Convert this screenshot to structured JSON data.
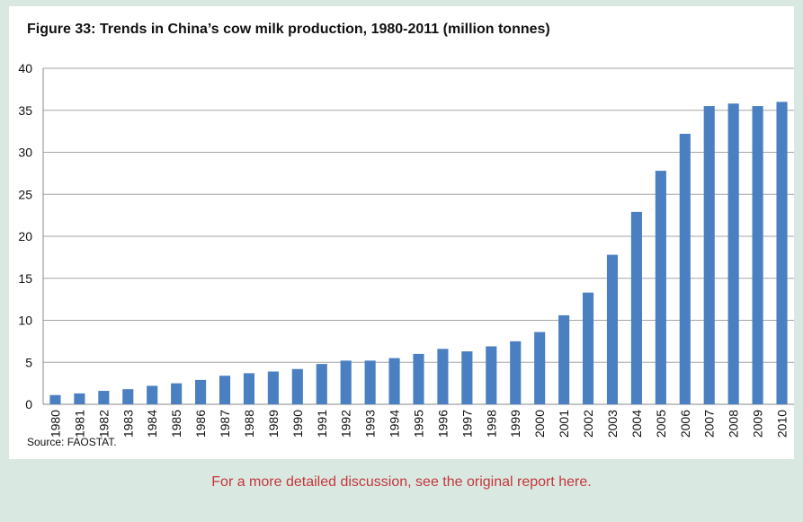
{
  "footer": {
    "link_text": "For a more detailed discussion, see the original report here."
  },
  "colors": {
    "bar": "#4a7fc1",
    "gridline": "#a6a6a6",
    "footer_background": "#d9e8e1",
    "footer_text": "#c4373d"
  },
  "chart_data": {
    "type": "bar",
    "title": "Figure 33: Trends in China’s cow milk production, 1980-2011 (million tonnes)",
    "source": "Source: FAOSTAT.",
    "xlabel": "",
    "ylabel": "",
    "ylim": [
      0,
      40
    ],
    "yticks": [
      "0",
      "5",
      "10",
      "15",
      "20",
      "25",
      "30",
      "35",
      "40"
    ],
    "grid": true,
    "legend": "none",
    "categories": [
      "1980",
      "1981",
      "1982",
      "1983",
      "1984",
      "1985",
      "1986",
      "1987",
      "1988",
      "1989",
      "1990",
      "1991",
      "1992",
      "1993",
      "1994",
      "1995",
      "1996",
      "1997",
      "1998",
      "1999",
      "2000",
      "2001",
      "2002",
      "2003",
      "2004",
      "2005",
      "2006",
      "2007",
      "2008",
      "2009",
      "2010"
    ],
    "values": [
      1.1,
      1.3,
      1.6,
      1.8,
      2.2,
      2.5,
      2.9,
      3.4,
      3.7,
      3.9,
      4.2,
      4.8,
      5.2,
      5.2,
      5.5,
      6.0,
      6.6,
      6.3,
      6.9,
      7.5,
      8.6,
      10.6,
      13.3,
      17.8,
      22.9,
      27.8,
      32.2,
      35.5,
      35.8,
      35.5,
      36.0
    ]
  }
}
